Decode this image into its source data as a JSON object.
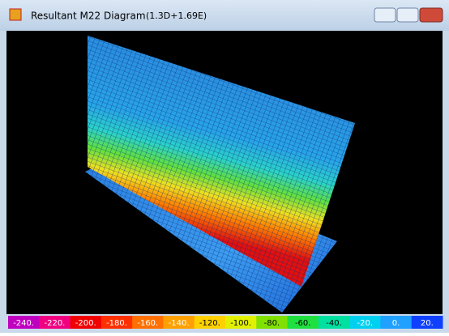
{
  "window": {
    "title": "Resultant M22 Diagram",
    "subtitle": "(1.3D+1.69E)"
  },
  "legend": {
    "labels": [
      "-240.",
      "-220.",
      "-200.",
      "-180.",
      "-160.",
      "-140.",
      "-120.",
      "-100.",
      "-80.",
      "-60.",
      "-40.",
      "-20.",
      "0.",
      "20."
    ]
  }
}
